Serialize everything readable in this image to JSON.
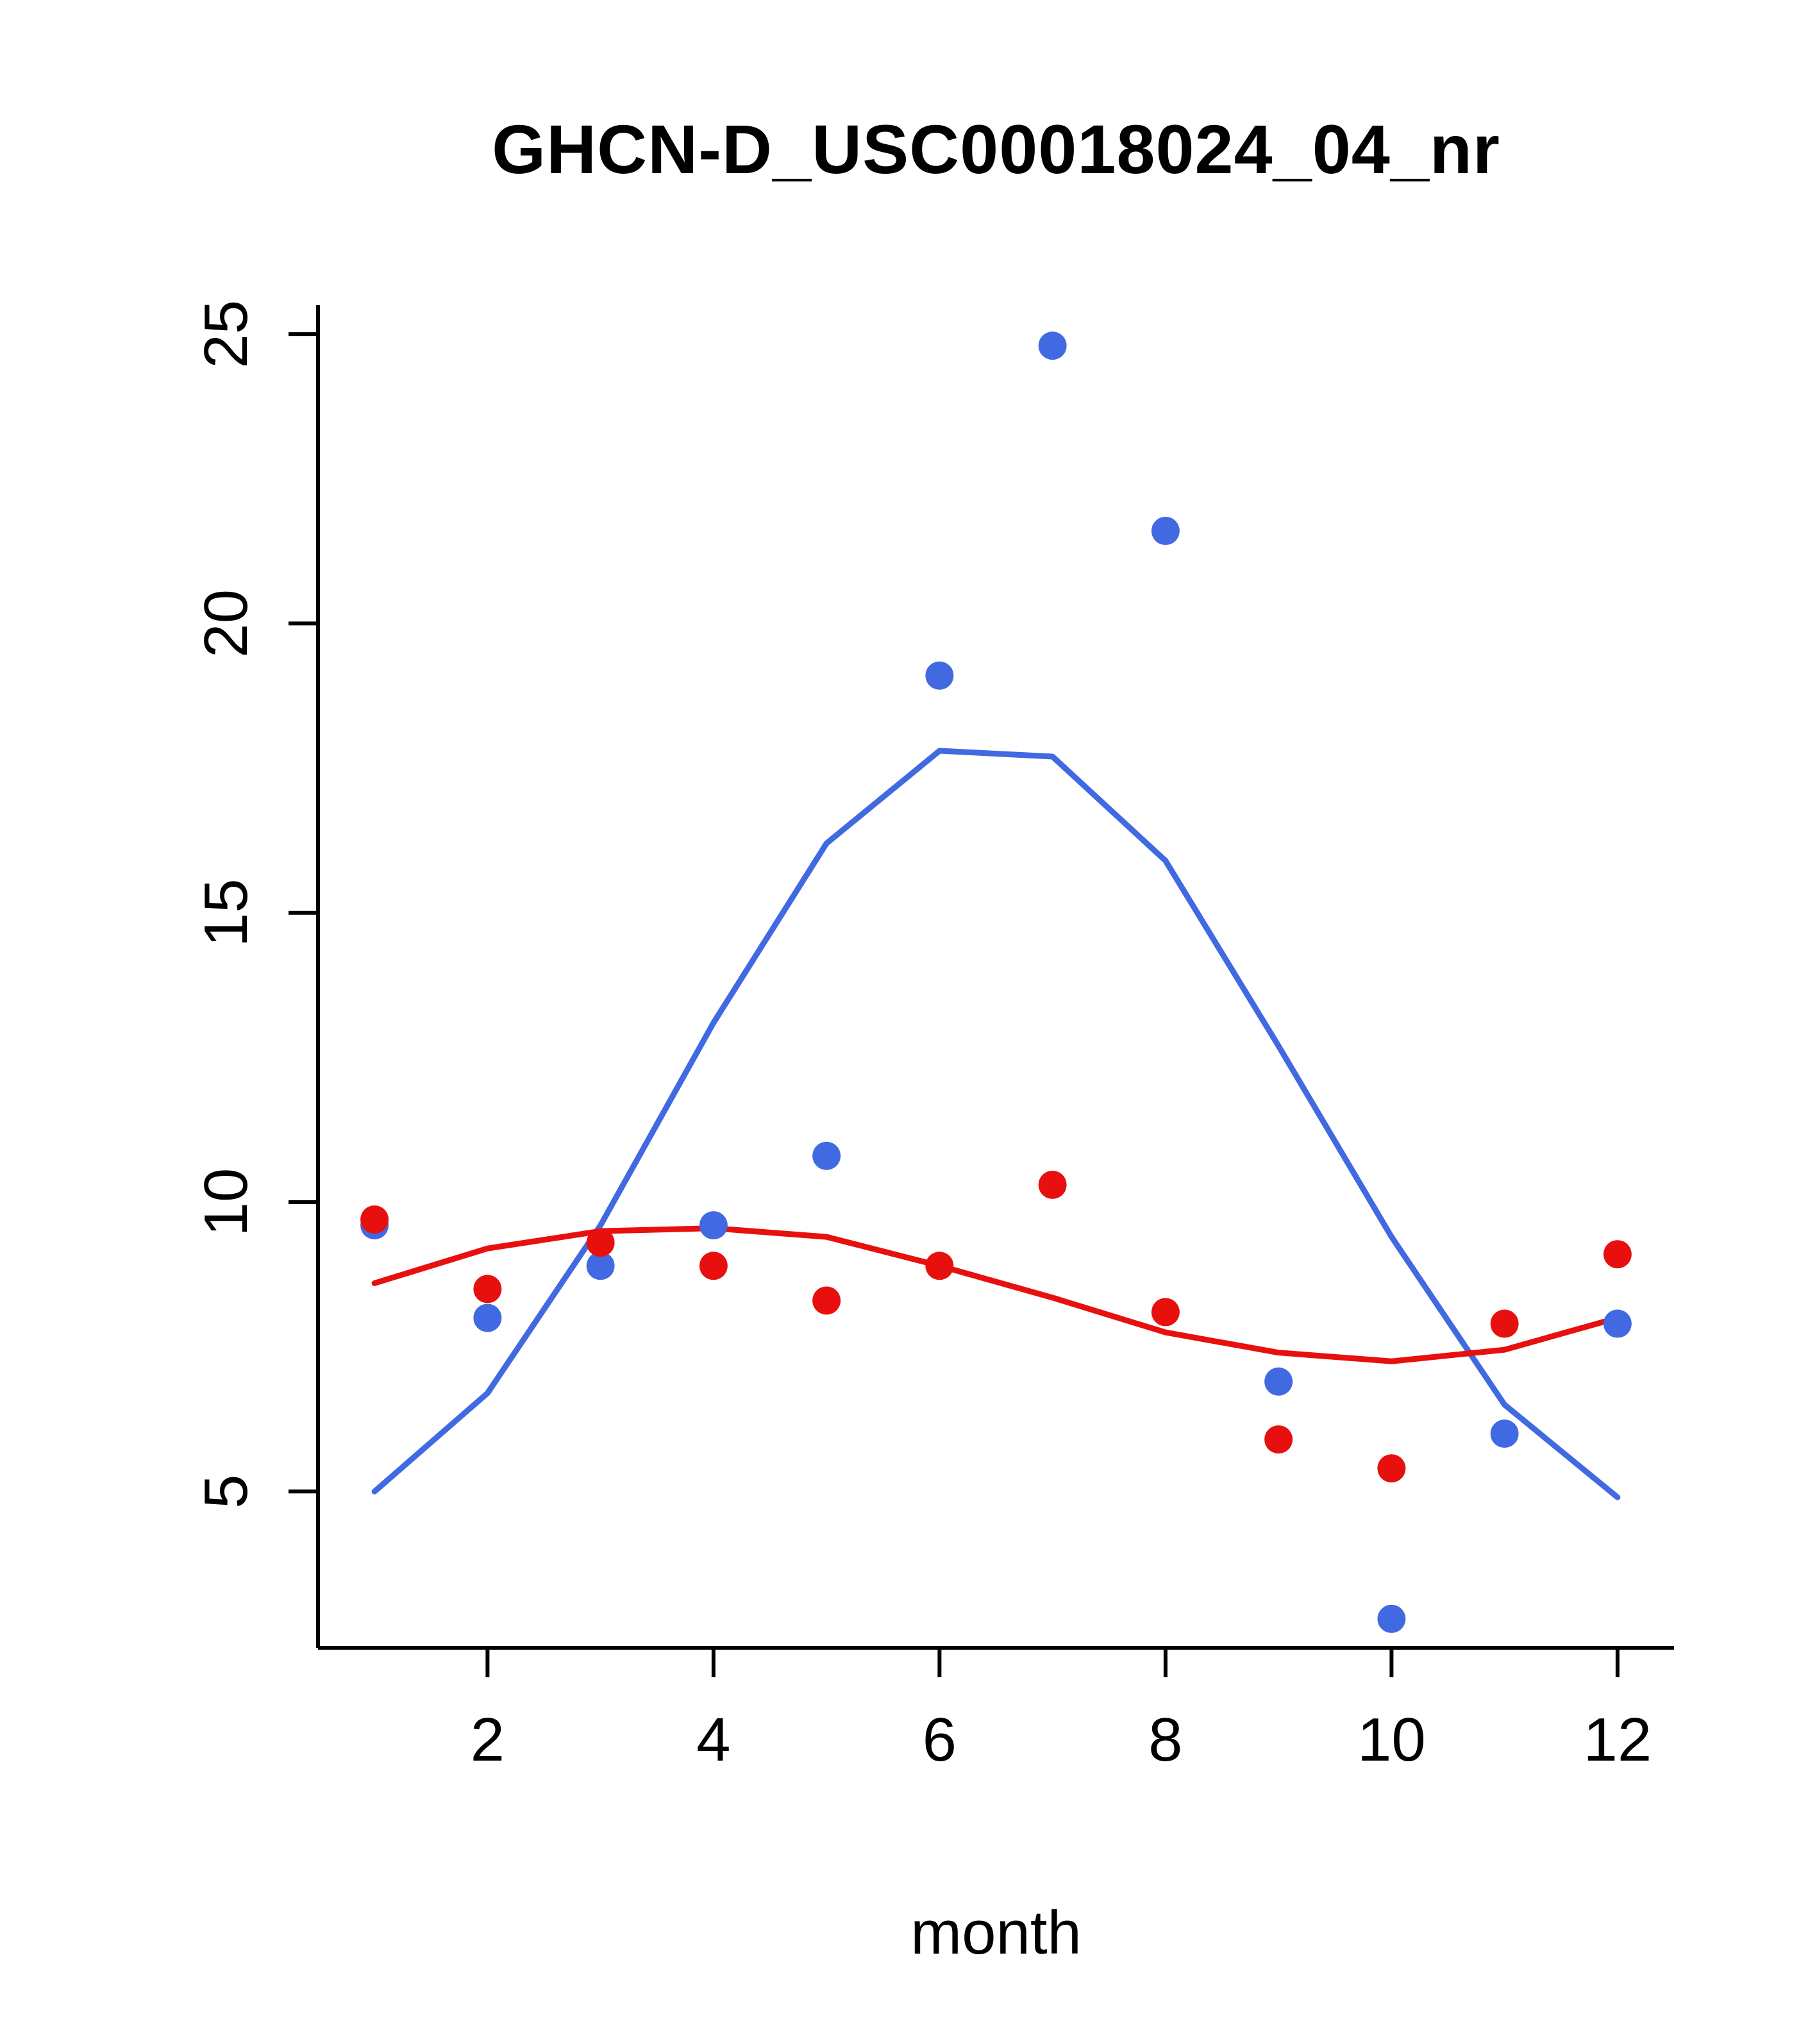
{
  "chart_data": {
    "type": "scatter",
    "title": "GHCN-D_USC00018024_04_nr",
    "xlabel": "month",
    "ylabel": "",
    "x_ticks": [
      2,
      4,
      6,
      8,
      10,
      12
    ],
    "y_ticks": [
      5,
      10,
      15,
      20,
      25
    ],
    "xlim": [
      0.5,
      12.5
    ],
    "ylim": [
      2.3,
      25.5
    ],
    "x": [
      1,
      2,
      3,
      4,
      5,
      6,
      7,
      8,
      9,
      10,
      11,
      12
    ],
    "colors": {
      "blue": "#4169e1",
      "red": "#e8100e",
      "axis": "#000000"
    },
    "series": [
      {
        "name": "blue-line",
        "kind": "line",
        "color": "#4169e1",
        "values": [
          5.0,
          6.7,
          9.6,
          13.1,
          16.2,
          17.8,
          17.7,
          15.9,
          12.7,
          9.4,
          6.5,
          4.9
        ]
      },
      {
        "name": "red-line",
        "kind": "line",
        "color": "#e8100e",
        "values": [
          8.6,
          9.2,
          9.5,
          9.55,
          9.4,
          8.9,
          8.35,
          7.75,
          7.4,
          7.25,
          7.45,
          8.0
        ]
      },
      {
        "name": "blue-points",
        "kind": "points",
        "color": "#4169e1",
        "values": [
          9.6,
          8.0,
          8.9,
          9.6,
          10.8,
          19.1,
          24.8,
          21.6,
          6.9,
          2.8,
          6.0,
          7.9
        ]
      },
      {
        "name": "red-points",
        "kind": "points",
        "color": "#e8100e",
        "values": [
          9.7,
          8.5,
          9.3,
          8.9,
          8.3,
          8.9,
          10.3,
          8.1,
          5.9,
          5.4,
          7.9,
          9.1
        ]
      }
    ]
  }
}
